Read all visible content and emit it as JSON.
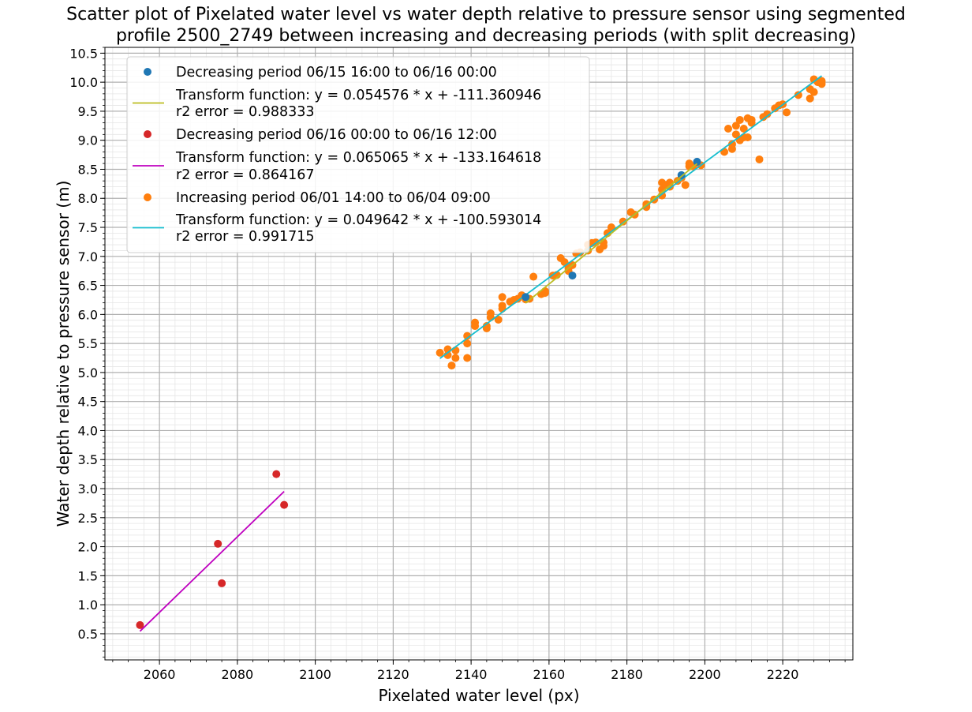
{
  "chart_data": {
    "type": "scatter",
    "title_line1": "Scatter plot of Pixelated water level vs water depth relative to pressure sensor using segmented",
    "title_line2": "profile 2500_2749 between increasing and decreasing periods (with split decreasing)",
    "xlabel": "Pixelated water level (px)",
    "ylabel": "Water depth relative to pressure sensor (m)",
    "xlim": [
      2046,
      2238
    ],
    "ylim": [
      0.05,
      10.6
    ],
    "xticks": [
      2060,
      2080,
      2100,
      2120,
      2140,
      2160,
      2180,
      2200,
      2220
    ],
    "yticks": [
      0.5,
      1.0,
      1.5,
      2.0,
      2.5,
      3.0,
      3.5,
      4.0,
      4.5,
      5.0,
      5.5,
      6.0,
      6.5,
      7.0,
      7.5,
      8.0,
      8.5,
      9.0,
      9.5,
      10.0,
      10.5
    ],
    "grid": true,
    "legend_position": "upper left",
    "series": [
      {
        "name": "Decreasing period 06/15 16:00 to 06/16 00:00",
        "kind": "scatter",
        "color": "#1f77b4",
        "points": [
          [
            2166,
            6.67
          ],
          [
            2194,
            8.4
          ],
          [
            2198,
            8.63
          ],
          [
            2154,
            6.3
          ]
        ]
      },
      {
        "name": "Transform function: y = 0.054576 * x + -111.360946",
        "name_line2": "r2 error = 0.988333",
        "kind": "line",
        "color": "#bcbd22",
        "x": [
          2154,
          2198
        ]
      },
      {
        "name": "Decreasing period 06/16 00:00 to 06/16 12:00",
        "kind": "scatter",
        "color": "#d62728",
        "points": [
          [
            2055,
            0.65
          ],
          [
            2075,
            2.05
          ],
          [
            2076,
            1.37
          ],
          [
            2090,
            3.25
          ],
          [
            2092,
            2.72
          ]
        ]
      },
      {
        "name": "Transform function: y = 0.065065 * x + -133.164618",
        "name_line2": "r2 error = 0.864167",
        "kind": "line",
        "color": "#bf00bf",
        "x": [
          2055,
          2092
        ]
      },
      {
        "name": "Increasing period 06/01 14:00 to 06/04 09:00",
        "kind": "scatter",
        "color": "#ff7f0e",
        "points": [
          [
            2132,
            5.34
          ],
          [
            2134,
            5.4
          ],
          [
            2134,
            5.3
          ],
          [
            2135,
            5.12
          ],
          [
            2136,
            5.25
          ],
          [
            2136,
            5.38
          ],
          [
            2139,
            5.25
          ],
          [
            2139,
            5.5
          ],
          [
            2139,
            5.63
          ],
          [
            2141,
            5.8
          ],
          [
            2141,
            5.86
          ],
          [
            2144,
            5.76
          ],
          [
            2144,
            5.8
          ],
          [
            2145,
            5.95
          ],
          [
            2145,
            6.02
          ],
          [
            2147,
            5.91
          ],
          [
            2148,
            6.1
          ],
          [
            2148,
            6.15
          ],
          [
            2148,
            6.3
          ],
          [
            2150,
            6.22
          ],
          [
            2151,
            6.25
          ],
          [
            2152,
            6.27
          ],
          [
            2153,
            6.33
          ],
          [
            2154,
            6.26
          ],
          [
            2155,
            6.27
          ],
          [
            2156,
            6.65
          ],
          [
            2158,
            6.35
          ],
          [
            2159,
            6.37
          ],
          [
            2159,
            6.4
          ],
          [
            2161,
            6.67
          ],
          [
            2162,
            6.68
          ],
          [
            2163,
            6.97
          ],
          [
            2164,
            6.9
          ],
          [
            2165,
            6.75
          ],
          [
            2165,
            6.8
          ],
          [
            2166,
            6.85
          ],
          [
            2167,
            7.05
          ],
          [
            2168,
            7.07
          ],
          [
            2170,
            7.1
          ],
          [
            2170,
            7.2
          ],
          [
            2171,
            7.23
          ],
          [
            2172,
            7.24
          ],
          [
            2173,
            7.12
          ],
          [
            2174,
            7.18
          ],
          [
            2174,
            7.24
          ],
          [
            2175,
            7.4
          ],
          [
            2176,
            7.5
          ],
          [
            2179,
            7.6
          ],
          [
            2181,
            7.76
          ],
          [
            2182,
            7.72
          ],
          [
            2185,
            7.85
          ],
          [
            2185,
            7.9
          ],
          [
            2187,
            7.98
          ],
          [
            2189,
            8.05
          ],
          [
            2189,
            8.15
          ],
          [
            2189,
            8.27
          ],
          [
            2190,
            8.23
          ],
          [
            2191,
            8.27
          ],
          [
            2191,
            8.2
          ],
          [
            2193,
            8.3
          ],
          [
            2194,
            8.35
          ],
          [
            2195,
            8.23
          ],
          [
            2196,
            8.55
          ],
          [
            2196,
            8.6
          ],
          [
            2197,
            8.55
          ],
          [
            2199,
            8.57
          ],
          [
            2205,
            8.8
          ],
          [
            2206,
            9.2
          ],
          [
            2207,
            8.85
          ],
          [
            2207,
            8.93
          ],
          [
            2208,
            9.25
          ],
          [
            2208,
            9.1
          ],
          [
            2209,
            9.35
          ],
          [
            2209,
            9.0
          ],
          [
            2210,
            9.2
          ],
          [
            2210,
            9.05
          ],
          [
            2211,
            9.38
          ],
          [
            2211,
            9.05
          ],
          [
            2212,
            9.3
          ],
          [
            2212,
            9.35
          ],
          [
            2214,
            8.67
          ],
          [
            2215,
            9.4
          ],
          [
            2216,
            9.45
          ],
          [
            2218,
            9.55
          ],
          [
            2219,
            9.6
          ],
          [
            2220,
            9.62
          ],
          [
            2221,
            9.48
          ],
          [
            2224,
            9.78
          ],
          [
            2227,
            9.72
          ],
          [
            2227,
            9.88
          ],
          [
            2228,
            10.05
          ],
          [
            2228,
            9.83
          ],
          [
            2229,
            10.0
          ],
          [
            2230,
            9.97
          ],
          [
            2230,
            10.02
          ]
        ]
      },
      {
        "name": "Transform function: y = 0.049642 * x + -100.593014",
        "name_line2": "r2 error = 0.991715",
        "kind": "line",
        "color": "#17becf",
        "x": [
          2132,
          2230
        ]
      }
    ]
  }
}
